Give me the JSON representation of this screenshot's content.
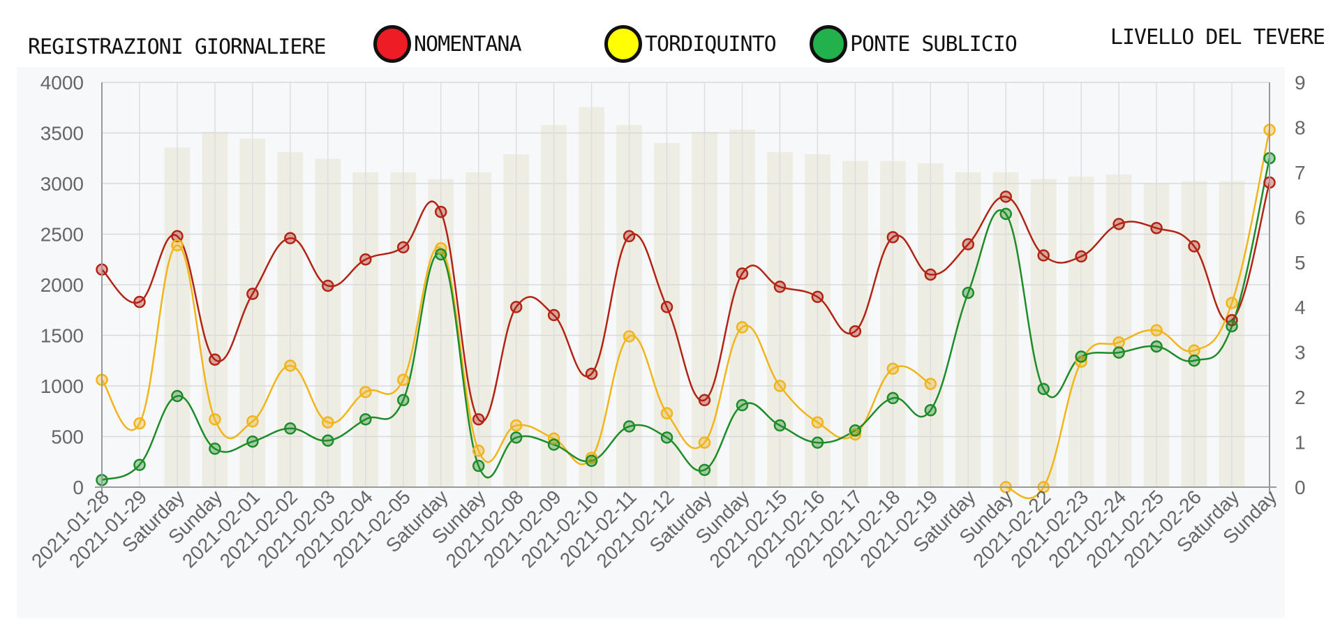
{
  "left_axis_title": "REGISTRAZIONI GIORNALIERE",
  "right_axis_title": "LIVELLO DEL TEVERE",
  "chart_data": {
    "type": "line",
    "categories": [
      "2021-01-28",
      "2021-01-29",
      "Saturday",
      "Sunday",
      "2021-02-01",
      "2021-02-02",
      "2021-02-03",
      "2021-02-04",
      "2021-02-05",
      "Saturday",
      "Sunday",
      "2021-02-08",
      "2021-02-09",
      "2021-02-10",
      "2021-02-11",
      "2021-02-12",
      "Saturday",
      "Sunday",
      "2021-02-15",
      "2021-02-16",
      "2021-02-17",
      "2021-02-18",
      "2021-02-19",
      "Saturday",
      "Sunday",
      "2021-02-22",
      "2021-02-23",
      "2021-02-24",
      "2021-02-25",
      "2021-02-26",
      "Saturday",
      "Sunday"
    ],
    "y_left": {
      "min": 0,
      "max": 4000,
      "ticks": [
        "0",
        "500",
        "1000",
        "1500",
        "2000",
        "2500",
        "3000",
        "3500",
        "4000"
      ]
    },
    "y_right": {
      "min": 0,
      "max": 9,
      "ticks": [
        "0",
        "1",
        "2",
        "3",
        "4",
        "5",
        "6",
        "7",
        "8",
        "9"
      ]
    },
    "grid": true,
    "legend_position": "top",
    "series": [
      {
        "name": "NOMENTANA",
        "axis": "left",
        "color": "#b22314",
        "legend_color": "#ee1c24",
        "values": [
          2150,
          1830,
          2480,
          1260,
          1910,
          2460,
          1990,
          2250,
          2370,
          2720,
          670,
          1780,
          1700,
          1120,
          2480,
          1780,
          860,
          2110,
          1980,
          1880,
          1540,
          2470,
          2100,
          2400,
          2870,
          2290,
          2280,
          2600,
          2560,
          2380,
          1650,
          3010
        ]
      },
      {
        "name": "TORDIQUINTO",
        "axis": "left",
        "color": "#f1b41a",
        "legend_color": "#ffff00",
        "values": [
          1060,
          630,
          2390,
          670,
          650,
          1200,
          640,
          940,
          1060,
          2360,
          360,
          610,
          480,
          290,
          1490,
          730,
          440,
          1580,
          1000,
          640,
          520,
          1170,
          1020,
          null,
          0,
          0,
          1240,
          1430,
          1550,
          1350,
          1820,
          3530
        ]
      },
      {
        "name": "PONTE SUBLICIO",
        "axis": "left",
        "color": "#1c8c29",
        "legend_color": "#22b14c",
        "values": [
          70,
          220,
          900,
          380,
          450,
          580,
          460,
          670,
          860,
          2300,
          210,
          490,
          420,
          260,
          600,
          490,
          170,
          810,
          610,
          440,
          560,
          880,
          760,
          1920,
          2700,
          970,
          1290,
          1330,
          1390,
          1250,
          1590,
          3250
        ]
      },
      {
        "name": "Livello del Tevere",
        "axis": "right",
        "type": "bar",
        "color": "#e9eadb",
        "values": [
          null,
          null,
          7.55,
          7.9,
          7.75,
          7.45,
          7.3,
          7.0,
          7.0,
          6.85,
          7.0,
          7.4,
          8.05,
          8.45,
          8.05,
          7.65,
          7.9,
          7.95,
          7.45,
          7.4,
          7.25,
          7.25,
          7.2,
          7.0,
          7.0,
          6.85,
          6.9,
          6.95,
          6.75,
          6.8,
          6.8,
          null
        ]
      }
    ]
  }
}
